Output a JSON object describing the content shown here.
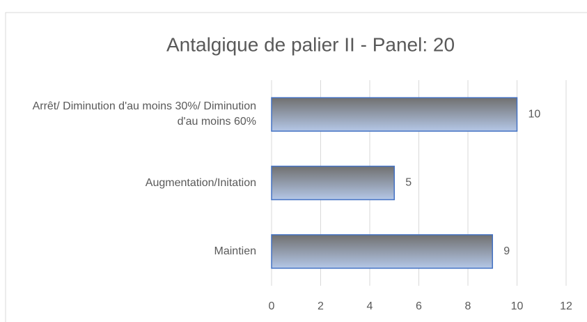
{
  "chart_data": {
    "type": "bar",
    "orientation": "horizontal",
    "title": "Antalgique de palier II - Panel: 20",
    "categories": [
      "Arrêt/ Diminution d'au moins 30%/ Diminution d'au moins 60%",
      "Augmentation/Initation",
      "Maintien"
    ],
    "values": [
      10,
      5,
      9
    ],
    "color": "#4472c4",
    "xlim": [
      0,
      12
    ],
    "xticks": [
      0,
      2,
      4,
      6,
      8,
      10,
      12
    ],
    "grid": true
  }
}
